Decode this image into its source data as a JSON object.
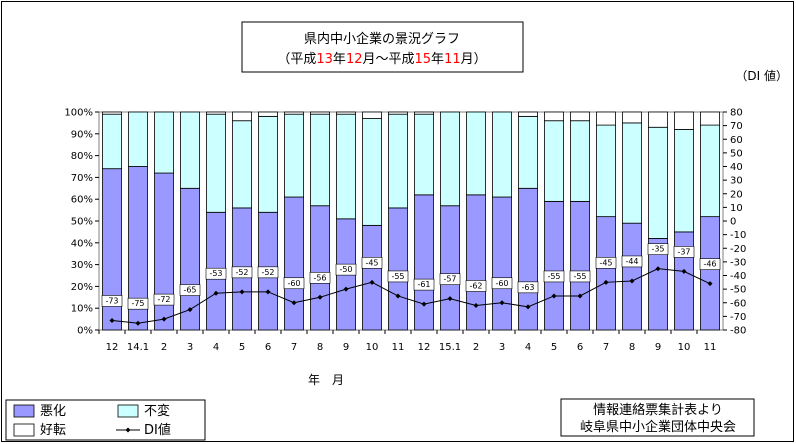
{
  "colors": {
    "worse": "#9999FF",
    "same": "#CCFFFF",
    "better": "#FFFFFF",
    "di": "#000000",
    "red": "#FF0000"
  },
  "chart_data": {
    "type": "bar",
    "title_line1": "県内中小企業の景況グラフ",
    "title_line2": [
      {
        "text": "（平成",
        "color": "#000000"
      },
      {
        "text": "13",
        "color": "#FF0000"
      },
      {
        "text": "年",
        "color": "#000000"
      },
      {
        "text": "12",
        "color": "#FF0000"
      },
      {
        "text": "月～平成",
        "color": "#000000"
      },
      {
        "text": "15",
        "color": "#FF0000"
      },
      {
        "text": "年",
        "color": "#000000"
      },
      {
        "text": "11",
        "color": "#FF0000"
      },
      {
        "text": "月）",
        "color": "#000000"
      }
    ],
    "y2_unit": "（DI 値）",
    "xlabel": "年　月",
    "categories": [
      "12",
      "14.1",
      "2",
      "3",
      "4",
      "5",
      "6",
      "7",
      "8",
      "9",
      "10",
      "11",
      "12",
      "15.1",
      "2",
      "3",
      "4",
      "5",
      "6",
      "7",
      "8",
      "9",
      "10",
      "11"
    ],
    "series": [
      {
        "name": "悪化",
        "values": [
          74,
          75,
          72,
          65,
          54,
          56,
          54,
          61,
          57,
          51,
          48,
          56,
          62,
          57,
          62,
          61,
          65,
          59,
          59,
          52,
          49,
          42,
          45,
          52
        ]
      },
      {
        "name": "不変",
        "values": [
          25,
          25,
          28,
          35,
          45,
          40,
          44,
          38,
          42,
          48,
          49,
          43,
          37,
          43,
          38,
          39,
          33,
          37,
          37,
          42,
          46,
          51,
          47,
          42
        ]
      },
      {
        "name": "好転",
        "values": [
          1,
          0,
          0,
          0,
          1,
          4,
          2,
          1,
          1,
          1,
          3,
          1,
          1,
          0,
          0,
          0,
          2,
          4,
          4,
          6,
          5,
          7,
          8,
          6
        ]
      },
      {
        "name": "DI値",
        "values": [
          -73,
          -75,
          -72,
          -65,
          -53,
          -52,
          -52,
          -60,
          -56,
          -50,
          -45,
          -55,
          -61,
          -57,
          -62,
          -60,
          -63,
          -55,
          -55,
          -45,
          -44,
          -35,
          -37,
          -46
        ]
      }
    ],
    "ylim": [
      0,
      100
    ],
    "y_ticks": [
      "0%",
      "10%",
      "20%",
      "30%",
      "40%",
      "50%",
      "60%",
      "70%",
      "80%",
      "90%",
      "100%"
    ],
    "y2lim": [
      -80,
      80
    ],
    "y2_ticks": [
      "-80",
      "-70",
      "-60",
      "-50",
      "-40",
      "-30",
      "-20",
      "-10",
      "0",
      "10",
      "20",
      "30",
      "40",
      "50",
      "60",
      "70",
      "80"
    ],
    "legend_placement": "bottom-left",
    "source_lines": [
      "情報連絡票集計表より",
      "岐阜県中小企業団体中央会"
    ]
  }
}
